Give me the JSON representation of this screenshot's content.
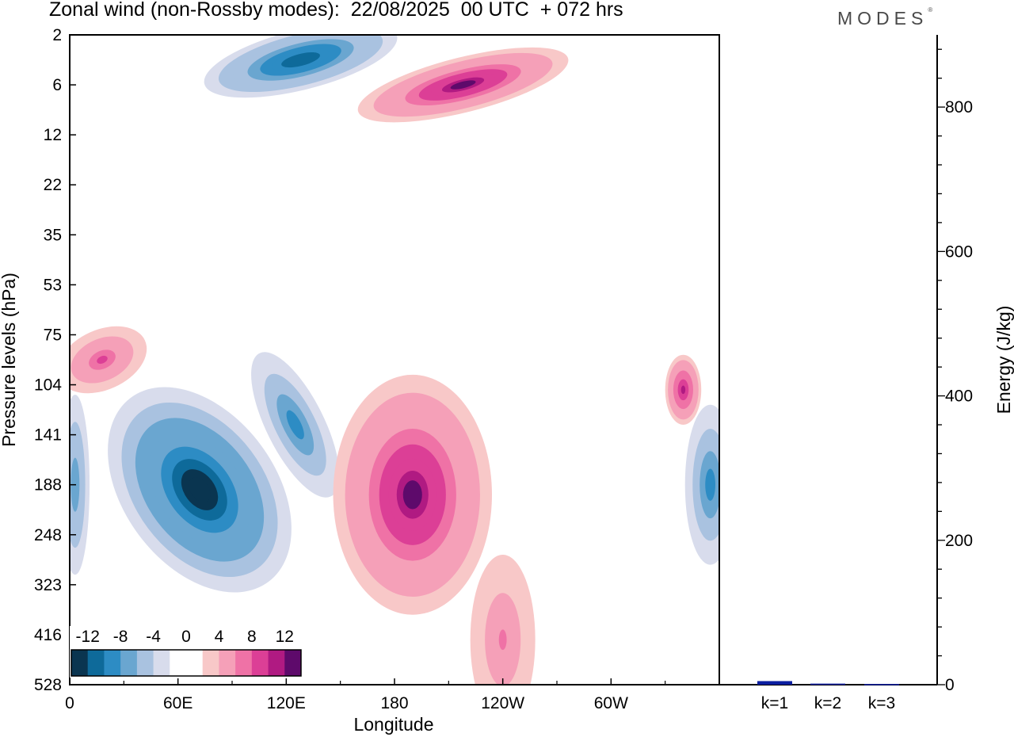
{
  "header": {
    "title": "Zonal wind (non-Rossby modes):  22/08/2025  00 UTC  + 072 hrs",
    "brand": "MODES",
    "brand_mark": "®"
  },
  "chart_data": [
    {
      "type": "heatmap",
      "title": "Zonal wind (non-Rossby modes):  22/08/2025  00 UTC  + 072 hrs",
      "xlabel": "Longitude",
      "ylabel": "Pressure levels (hPa)",
      "x_ticks": [
        "0",
        "60E",
        "120E",
        "180",
        "120W",
        "60W"
      ],
      "x_tick_values": [
        0,
        60,
        120,
        180,
        240,
        300
      ],
      "xlim": [
        0,
        360
      ],
      "y_ticks": [
        "2",
        "6",
        "12",
        "22",
        "35",
        "53",
        "75",
        "104",
        "141",
        "188",
        "248",
        "323",
        "416",
        "528"
      ],
      "y_scale": "pressure-levels",
      "y_inverted": true,
      "colorbar": {
        "tick_labels": [
          "-12",
          "-8",
          "-4",
          "0",
          "4",
          "8",
          "12"
        ],
        "levels": [
          -14,
          -12,
          -10,
          -8,
          -6,
          -4,
          -2,
          0,
          2,
          4,
          6,
          8,
          10,
          12,
          14
        ],
        "colors": [
          "#0a3550",
          "#0e6a9a",
          "#2d8cc4",
          "#6aa6d0",
          "#a9c2e0",
          "#d8dcec",
          "#ffffff",
          "#ffffff",
          "#f8c8c8",
          "#f5a0b8",
          "#ef72a6",
          "#dc3f96",
          "#b01a82",
          "#5e0a6b"
        ],
        "position": "bottom-left"
      },
      "features": [
        {
          "name": "negative-core-60E",
          "sign": "negative",
          "lon": 72,
          "level_index": 9.1,
          "peak": -14
        },
        {
          "name": "negative-upper-right",
          "sign": "negative",
          "lon": 355,
          "level_index": 9.0,
          "peak": -10
        },
        {
          "name": "negative-120E",
          "sign": "negative",
          "lon": 125,
          "level_index": 7.8,
          "peak": -10
        },
        {
          "name": "negative-left-edge",
          "sign": "negative",
          "lon": 3,
          "level_index": 9.0,
          "peak": -8
        },
        {
          "name": "negative-stratosphere",
          "sign": "negative",
          "lon": 128,
          "level_index": 0.5,
          "peak": -12
        },
        {
          "name": "positive-core-180",
          "sign": "positive",
          "lon": 190,
          "level_index": 9.2,
          "peak": 12
        },
        {
          "name": "positive-lower",
          "sign": "positive",
          "lon": 240,
          "level_index": 12.1,
          "peak": 6
        },
        {
          "name": "positive-stratosphere",
          "sign": "positive",
          "lon": 218,
          "level_index": 1.0,
          "peak": 12
        },
        {
          "name": "positive-75hPa-left",
          "sign": "positive",
          "lon": 18,
          "level_index": 6.5,
          "peak": 8
        },
        {
          "name": "positive-104hPa-right",
          "sign": "positive",
          "lon": 340,
          "level_index": 7.1,
          "peak": 10
        }
      ]
    },
    {
      "type": "bar",
      "categories": [
        "k=1",
        "k=2",
        "k=3"
      ],
      "values": [
        5,
        1.5,
        1
      ],
      "ylabel": "Energy (J/kg)",
      "y_ticks": [
        "0",
        "200",
        "400",
        "600",
        "800"
      ],
      "ylim": [
        0,
        900
      ],
      "bar_color": "#0b1fa0"
    }
  ]
}
